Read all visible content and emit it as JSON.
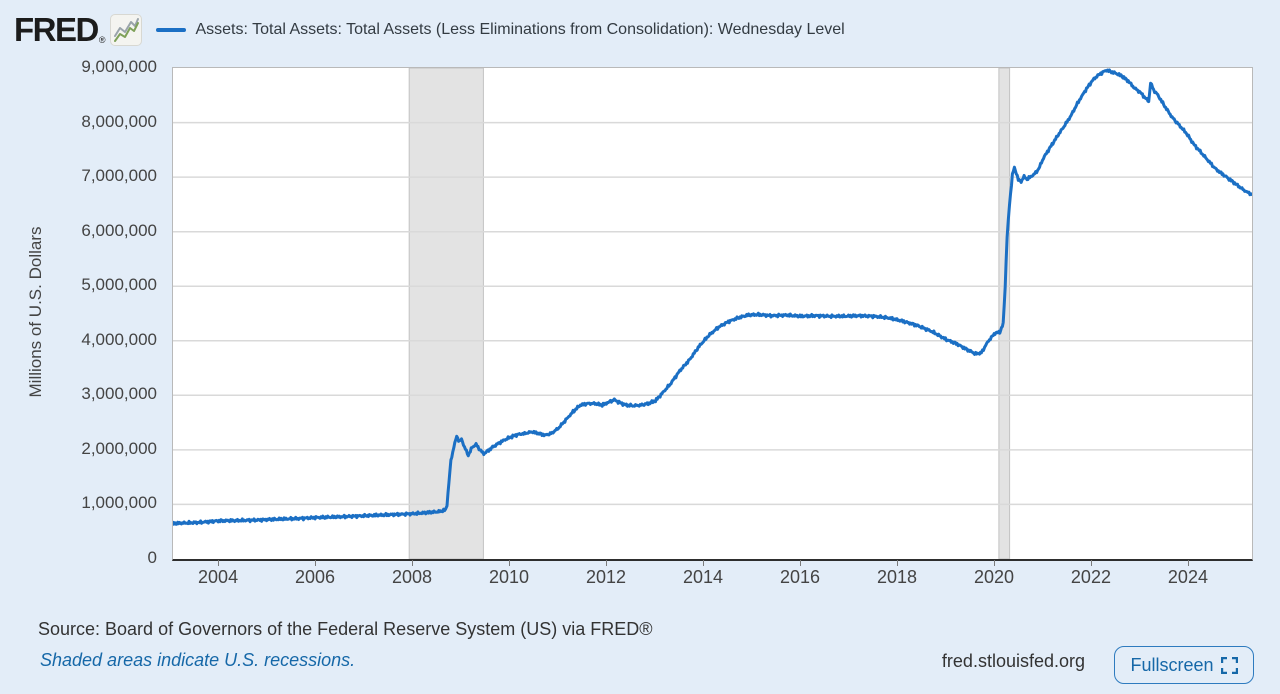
{
  "header": {
    "logo_text": "FRED",
    "logo_reg": "®",
    "series_label": "Assets: Total Assets: Total Assets (Less Eliminations from Consolidation): Wednesday Level"
  },
  "y_axis": {
    "title": "Millions of U.S. Dollars",
    "tick_labels": [
      "9,000,000",
      "8,000,000",
      "7,000,000",
      "6,000,000",
      "5,000,000",
      "4,000,000",
      "3,000,000",
      "2,000,000",
      "1,000,000",
      "0"
    ]
  },
  "x_axis": {
    "tick_labels": [
      "2004",
      "2006",
      "2008",
      "2010",
      "2012",
      "2014",
      "2016",
      "2018",
      "2020",
      "2022",
      "2024"
    ]
  },
  "footer": {
    "source": "Source: Board of Governors of the Federal Reserve System (US) via FRED®",
    "recessions_note": "Shaded areas indicate U.S. recessions.",
    "site": "fred.stlouisfed.org",
    "fullscreen_label": "Fullscreen"
  },
  "colors": {
    "line": "#1b6fc4",
    "page_bg": "#e3edf8",
    "recession_band": "#e3e3e3",
    "recession_edge": "#c2c2c2",
    "gridline": "#d9d9d9",
    "link_blue": "#1668a8"
  },
  "chart_data": {
    "type": "line",
    "title": "Assets: Total Assets: Total Assets (Less Eliminations from Consolidation): Wednesday Level",
    "ylabel": "Millions of U.S. Dollars",
    "unit": "millions of U.S. dollars, weekly Wednesday level",
    "x_range": [
      2003.05,
      2025.3
    ],
    "y_range": [
      0,
      9000000
    ],
    "x_ticks": [
      2004,
      2006,
      2008,
      2010,
      2012,
      2014,
      2016,
      2018,
      2020,
      2022,
      2024
    ],
    "y_ticks": [
      0,
      1000000,
      2000000,
      3000000,
      4000000,
      5000000,
      6000000,
      7000000,
      8000000,
      9000000
    ],
    "grid": "horizontal",
    "legend_position": "top",
    "recession_bands": [
      [
        2007.92,
        2009.45
      ],
      [
        2020.08,
        2020.3
      ]
    ],
    "series": [
      {
        "name": "Assets: Total Assets: Total Assets (Less Eliminations from Consolidation): Wednesday Level",
        "color": "#1b6fc4",
        "points": [
          [
            2003.05,
            650000
          ],
          [
            2003.3,
            660000
          ],
          [
            2003.6,
            670000
          ],
          [
            2004.0,
            700000
          ],
          [
            2004.4,
            705000
          ],
          [
            2004.8,
            715000
          ],
          [
            2005.2,
            730000
          ],
          [
            2005.6,
            740000
          ],
          [
            2006.0,
            760000
          ],
          [
            2006.4,
            770000
          ],
          [
            2006.8,
            785000
          ],
          [
            2007.2,
            800000
          ],
          [
            2007.6,
            815000
          ],
          [
            2008.0,
            830000
          ],
          [
            2008.3,
            850000
          ],
          [
            2008.55,
            870000
          ],
          [
            2008.67,
            900000
          ],
          [
            2008.7,
            1000000
          ],
          [
            2008.74,
            1400000
          ],
          [
            2008.78,
            1800000
          ],
          [
            2008.84,
            2050000
          ],
          [
            2008.9,
            2250000
          ],
          [
            2008.96,
            2150000
          ],
          [
            2009.0,
            2200000
          ],
          [
            2009.06,
            2050000
          ],
          [
            2009.14,
            1900000
          ],
          [
            2009.22,
            2050000
          ],
          [
            2009.3,
            2100000
          ],
          [
            2009.38,
            2000000
          ],
          [
            2009.46,
            1930000
          ],
          [
            2009.54,
            1980000
          ],
          [
            2009.64,
            2050000
          ],
          [
            2009.76,
            2120000
          ],
          [
            2009.88,
            2180000
          ],
          [
            2010.0,
            2230000
          ],
          [
            2010.15,
            2280000
          ],
          [
            2010.3,
            2300000
          ],
          [
            2010.45,
            2330000
          ],
          [
            2010.6,
            2300000
          ],
          [
            2010.72,
            2270000
          ],
          [
            2010.85,
            2300000
          ],
          [
            2011.0,
            2400000
          ],
          [
            2011.15,
            2550000
          ],
          [
            2011.3,
            2700000
          ],
          [
            2011.45,
            2820000
          ],
          [
            2011.6,
            2850000
          ],
          [
            2011.75,
            2850000
          ],
          [
            2011.9,
            2820000
          ],
          [
            2012.05,
            2880000
          ],
          [
            2012.15,
            2920000
          ],
          [
            2012.25,
            2870000
          ],
          [
            2012.4,
            2820000
          ],
          [
            2012.55,
            2810000
          ],
          [
            2012.7,
            2820000
          ],
          [
            2012.85,
            2850000
          ],
          [
            2013.0,
            2900000
          ],
          [
            2013.15,
            3050000
          ],
          [
            2013.3,
            3200000
          ],
          [
            2013.5,
            3450000
          ],
          [
            2013.7,
            3650000
          ],
          [
            2013.9,
            3900000
          ],
          [
            2014.1,
            4100000
          ],
          [
            2014.3,
            4250000
          ],
          [
            2014.5,
            4350000
          ],
          [
            2014.7,
            4420000
          ],
          [
            2014.9,
            4470000
          ],
          [
            2015.1,
            4480000
          ],
          [
            2015.4,
            4460000
          ],
          [
            2015.7,
            4470000
          ],
          [
            2016.0,
            4450000
          ],
          [
            2016.3,
            4460000
          ],
          [
            2016.6,
            4450000
          ],
          [
            2016.9,
            4450000
          ],
          [
            2017.2,
            4460000
          ],
          [
            2017.5,
            4450000
          ],
          [
            2017.8,
            4420000
          ],
          [
            2018.1,
            4360000
          ],
          [
            2018.4,
            4280000
          ],
          [
            2018.7,
            4170000
          ],
          [
            2019.0,
            4020000
          ],
          [
            2019.2,
            3950000
          ],
          [
            2019.4,
            3850000
          ],
          [
            2019.6,
            3760000
          ],
          [
            2019.72,
            3780000
          ],
          [
            2019.85,
            3980000
          ],
          [
            2020.0,
            4140000
          ],
          [
            2020.1,
            4160000
          ],
          [
            2020.17,
            4310000
          ],
          [
            2020.21,
            5000000
          ],
          [
            2020.25,
            5900000
          ],
          [
            2020.3,
            6500000
          ],
          [
            2020.36,
            7050000
          ],
          [
            2020.4,
            7170000
          ],
          [
            2020.44,
            7080000
          ],
          [
            2020.48,
            6950000
          ],
          [
            2020.54,
            6920000
          ],
          [
            2020.6,
            7010000
          ],
          [
            2020.66,
            6960000
          ],
          [
            2020.74,
            7010000
          ],
          [
            2020.82,
            7060000
          ],
          [
            2020.9,
            7150000
          ],
          [
            2021.0,
            7350000
          ],
          [
            2021.12,
            7520000
          ],
          [
            2021.25,
            7700000
          ],
          [
            2021.4,
            7900000
          ],
          [
            2021.55,
            8100000
          ],
          [
            2021.7,
            8350000
          ],
          [
            2021.85,
            8570000
          ],
          [
            2022.0,
            8760000
          ],
          [
            2022.1,
            8850000
          ],
          [
            2022.2,
            8910000
          ],
          [
            2022.3,
            8960000
          ],
          [
            2022.4,
            8930000
          ],
          [
            2022.5,
            8900000
          ],
          [
            2022.62,
            8850000
          ],
          [
            2022.75,
            8760000
          ],
          [
            2022.88,
            8630000
          ],
          [
            2023.0,
            8550000
          ],
          [
            2023.1,
            8450000
          ],
          [
            2023.17,
            8390000
          ],
          [
            2023.21,
            8730000
          ],
          [
            2023.27,
            8600000
          ],
          [
            2023.36,
            8500000
          ],
          [
            2023.5,
            8300000
          ],
          [
            2023.65,
            8100000
          ],
          [
            2023.8,
            7950000
          ],
          [
            2023.95,
            7800000
          ],
          [
            2024.1,
            7600000
          ],
          [
            2024.25,
            7450000
          ],
          [
            2024.4,
            7300000
          ],
          [
            2024.55,
            7150000
          ],
          [
            2024.7,
            7050000
          ],
          [
            2024.85,
            6950000
          ],
          [
            2025.0,
            6850000
          ],
          [
            2025.15,
            6750000
          ],
          [
            2025.3,
            6680000
          ]
        ]
      }
    ]
  }
}
